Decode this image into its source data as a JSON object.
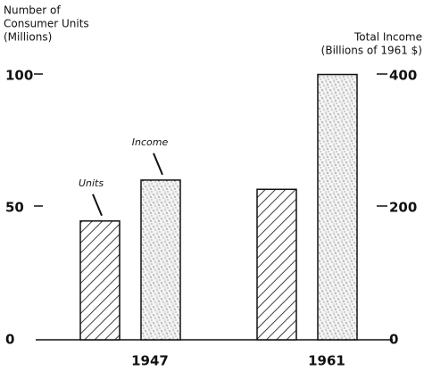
{
  "chart_data": {
    "type": "bar",
    "y_label": [
      "Number of",
      "Consumer Units",
      "(Millions)"
    ],
    "y2_label": [
      "Total Income",
      "(Billions of 1961 $)"
    ],
    "categories": [
      "1947",
      "1961"
    ],
    "series": [
      {
        "name": "Units",
        "color": "#111111",
        "pattern": "hatch",
        "values": [
          45,
          57
        ]
      },
      {
        "name": "Income",
        "color": "#111111",
        "pattern": "stipple",
        "axis": "y2",
        "values": [
          242,
          402
        ]
      }
    ],
    "ylim": [
      0,
      100
    ],
    "yticks": [
      0,
      50,
      100
    ],
    "y2lim": [
      0,
      400
    ],
    "y2ticks": [
      0,
      200,
      400
    ]
  }
}
